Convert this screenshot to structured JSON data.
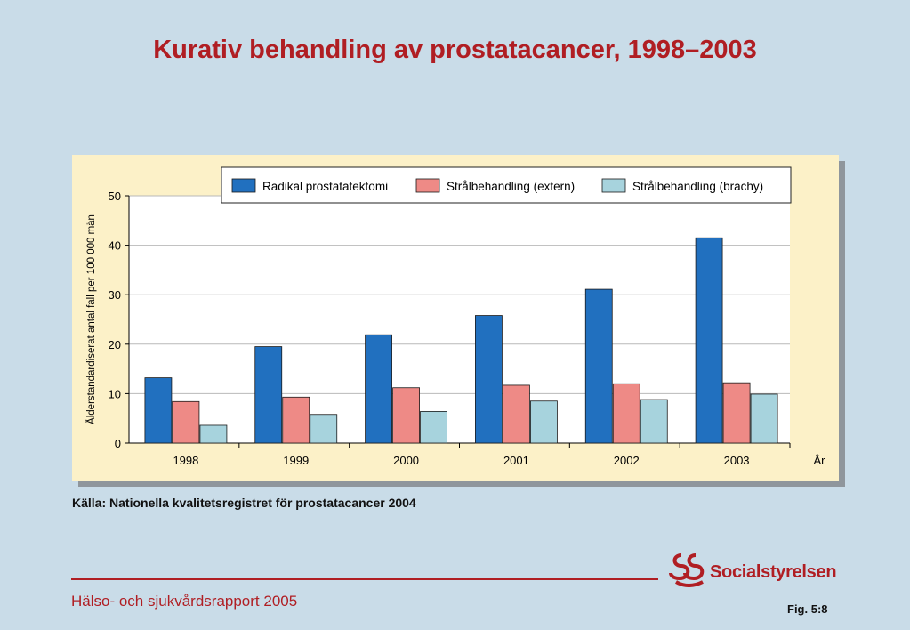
{
  "slide": {
    "title": "Kurativ behandling av prostatacancer, 1998–2003",
    "source": "Källa: Nationella kvalitetsregistret för prostatacancer 2004",
    "footer_report": "Hälso- och sjukvårdsrapport 2005",
    "logo_text": "Socialstyrelsen",
    "fig_label": "Fig. 5:8"
  },
  "colors": {
    "background": "#c9dce8",
    "title": "#b01e23",
    "chart_bg": "#fcf1c8",
    "plot_bg": "#ffffff"
  },
  "chart_data": {
    "type": "bar",
    "title": "Kurativ behandling av prostatacancer, 1998–2003",
    "xlabel": "År",
    "ylabel": "Ålderstandardiserat antal fall per 100 000 män",
    "categories": [
      "1998",
      "1999",
      "2000",
      "2001",
      "2002",
      "2003"
    ],
    "ylim": [
      0,
      50
    ],
    "yticks": [
      0,
      10,
      20,
      30,
      40,
      50
    ],
    "grid": true,
    "legend_position": "top",
    "series": [
      {
        "name": "Radikal prostatatektomi",
        "color": "#2170bf",
        "values": [
          13.2,
          19.5,
          21.9,
          25.8,
          31.1,
          41.5
        ]
      },
      {
        "name": "Strålbehandling (extern)",
        "color": "#ee8a86",
        "values": [
          8.4,
          9.3,
          11.2,
          11.7,
          12.0,
          12.2
        ]
      },
      {
        "name": "Strålbehandling (brachy)",
        "color": "#a7d3dd",
        "values": [
          3.6,
          5.8,
          6.4,
          8.5,
          8.8,
          9.9
        ]
      }
    ]
  }
}
